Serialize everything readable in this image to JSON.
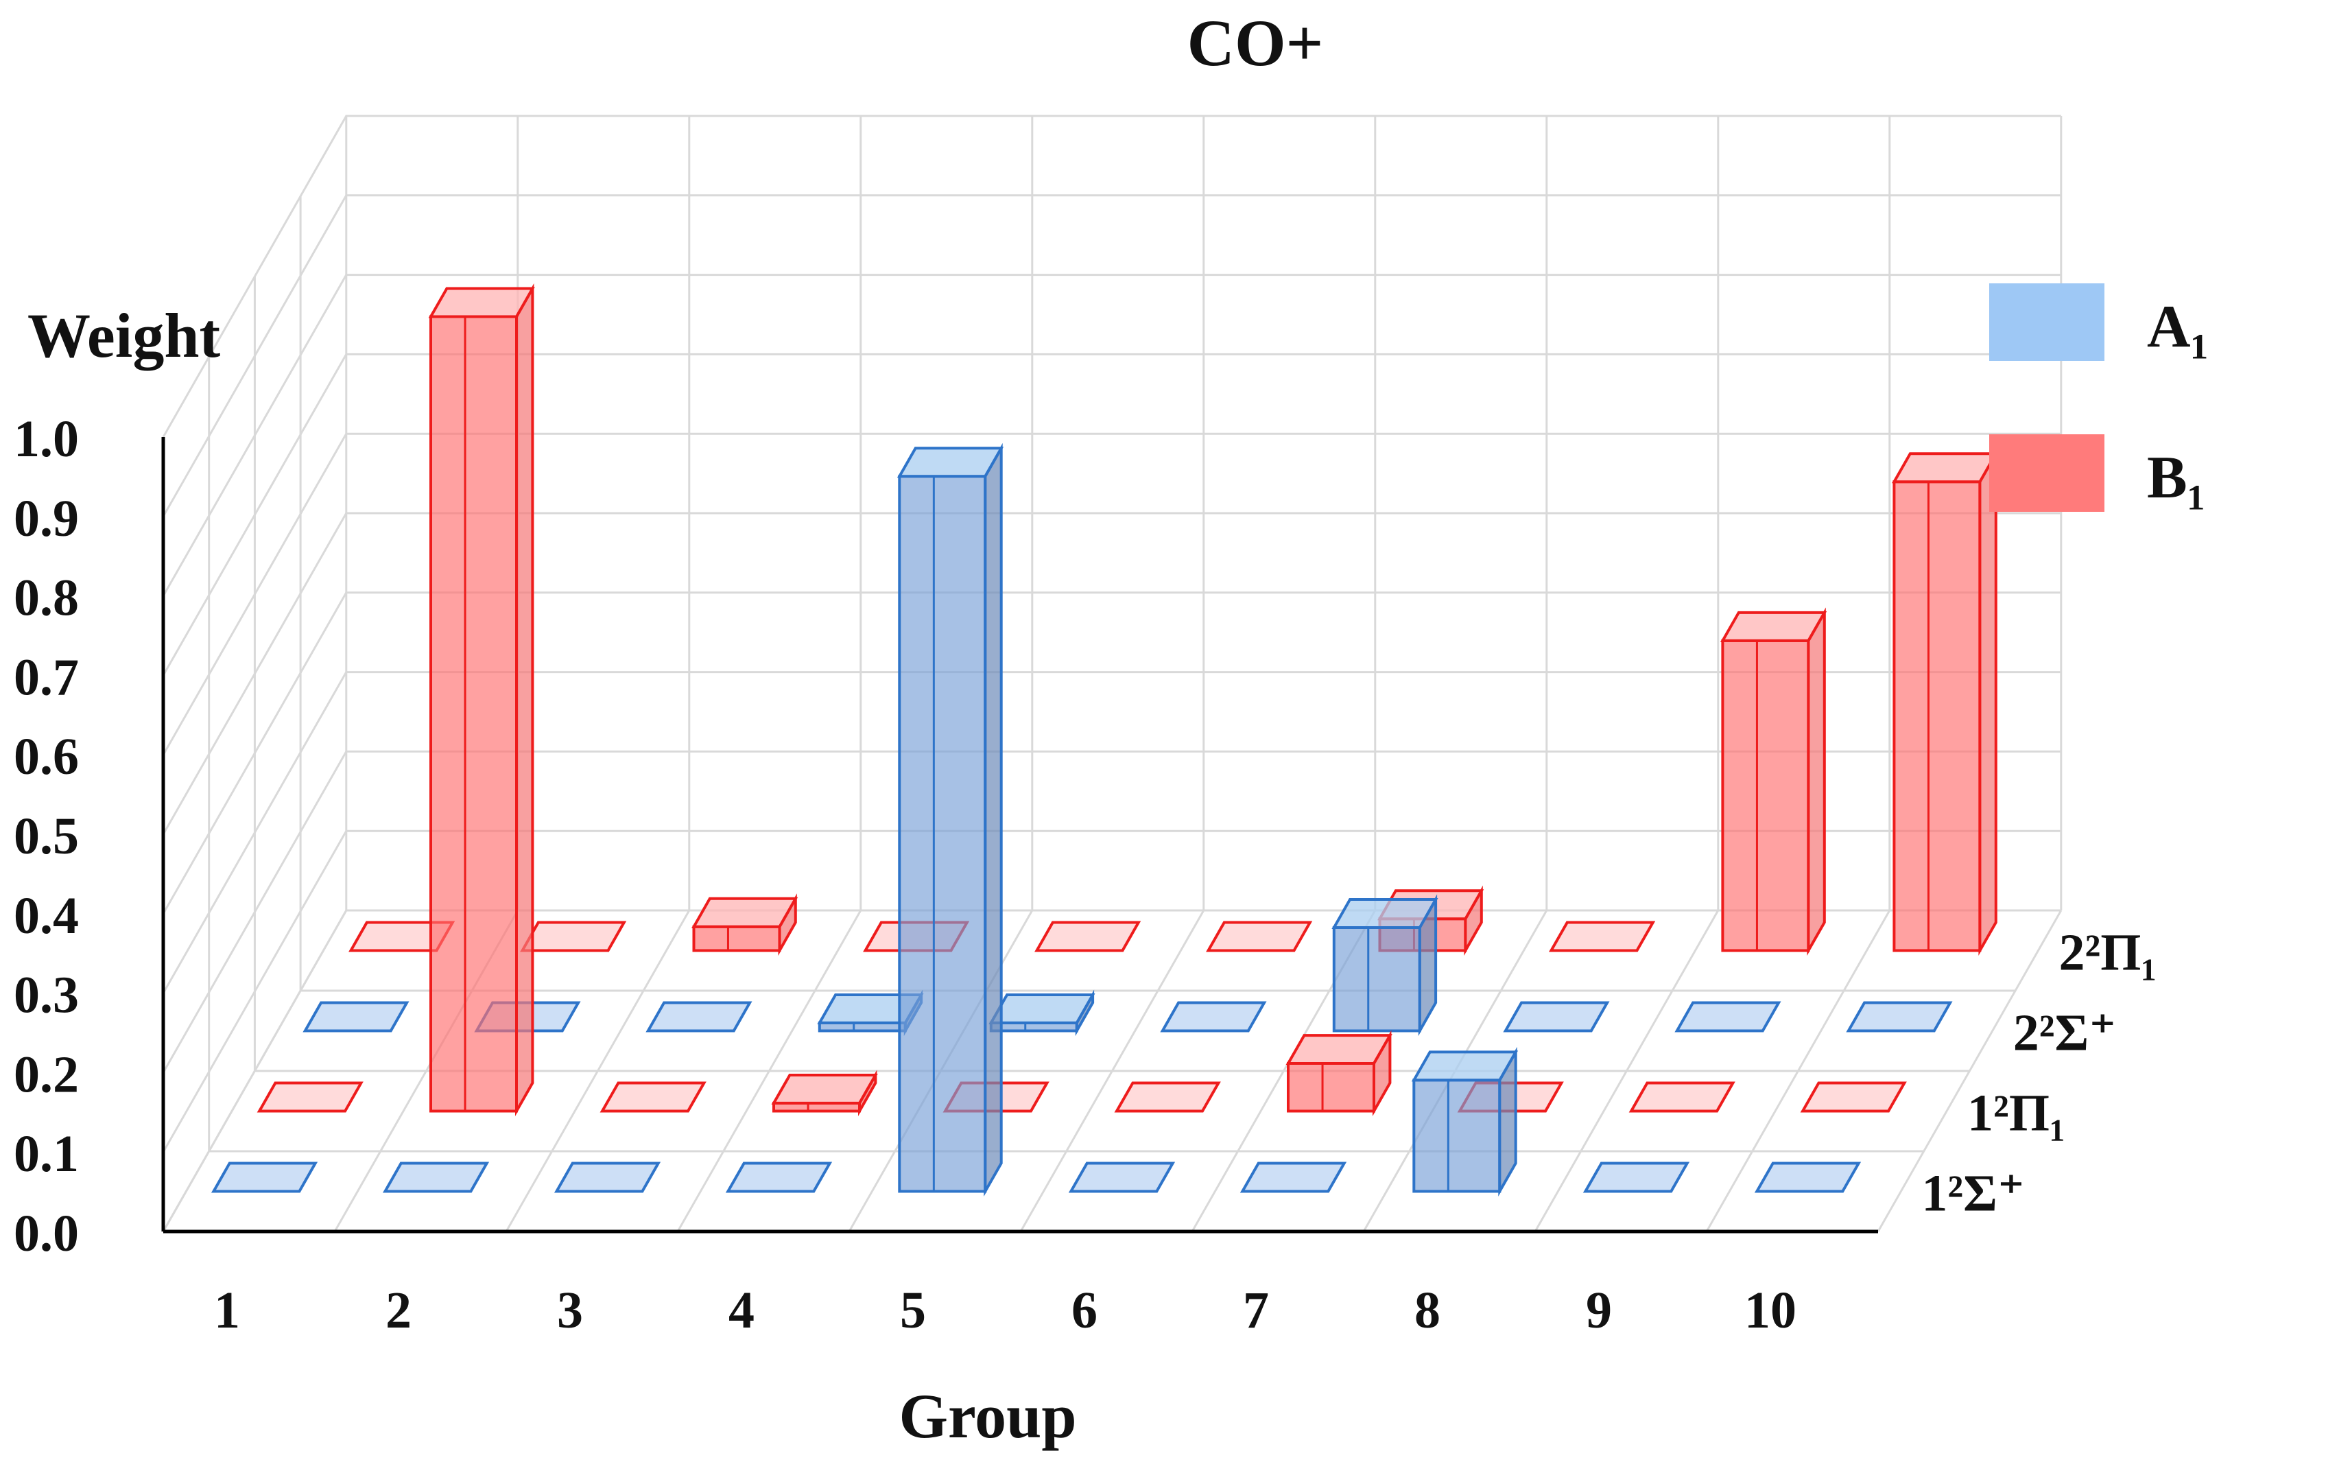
{
  "chart_data": {
    "type": "bar",
    "title": "CO+",
    "xlabel": "Group",
    "ylabel": "Weight",
    "ylim": [
      0,
      1
    ],
    "y_ticks": [
      "0.0",
      "0.1",
      "0.2",
      "0.3",
      "0.4",
      "0.5",
      "0.6",
      "0.7",
      "0.8",
      "0.9",
      "1.0"
    ],
    "categories": [
      "1",
      "2",
      "3",
      "4",
      "5",
      "6",
      "7",
      "8",
      "9",
      "10"
    ],
    "depth_labels": [
      "1²Σ⁺",
      "1²Π₁",
      "2²Σ⁺",
      "2²Π₁"
    ],
    "legend": [
      {
        "name": "A₁",
        "color": "#6fa8dc"
      },
      {
        "name": "B₁",
        "color": "#ff4d4d"
      }
    ],
    "series": [
      {
        "name": "1²Σ⁺",
        "symmetry": "A₁",
        "values": [
          0,
          0,
          0,
          0,
          0.9,
          0,
          0,
          0.14,
          0,
          0
        ]
      },
      {
        "name": "1²Π₁",
        "symmetry": "B₁",
        "values": [
          0,
          1.0,
          0,
          0.01,
          0,
          0,
          0.06,
          0,
          0,
          0
        ]
      },
      {
        "name": "2²Σ⁺",
        "symmetry": "A₁",
        "values": [
          0,
          0,
          0,
          0.01,
          0.01,
          0,
          0.13,
          0,
          0,
          0
        ]
      },
      {
        "name": "2²Π₁",
        "symmetry": "B₁",
        "values": [
          0,
          0,
          0.03,
          0,
          0,
          0,
          0.04,
          0,
          0.39,
          0.59
        ]
      }
    ]
  }
}
